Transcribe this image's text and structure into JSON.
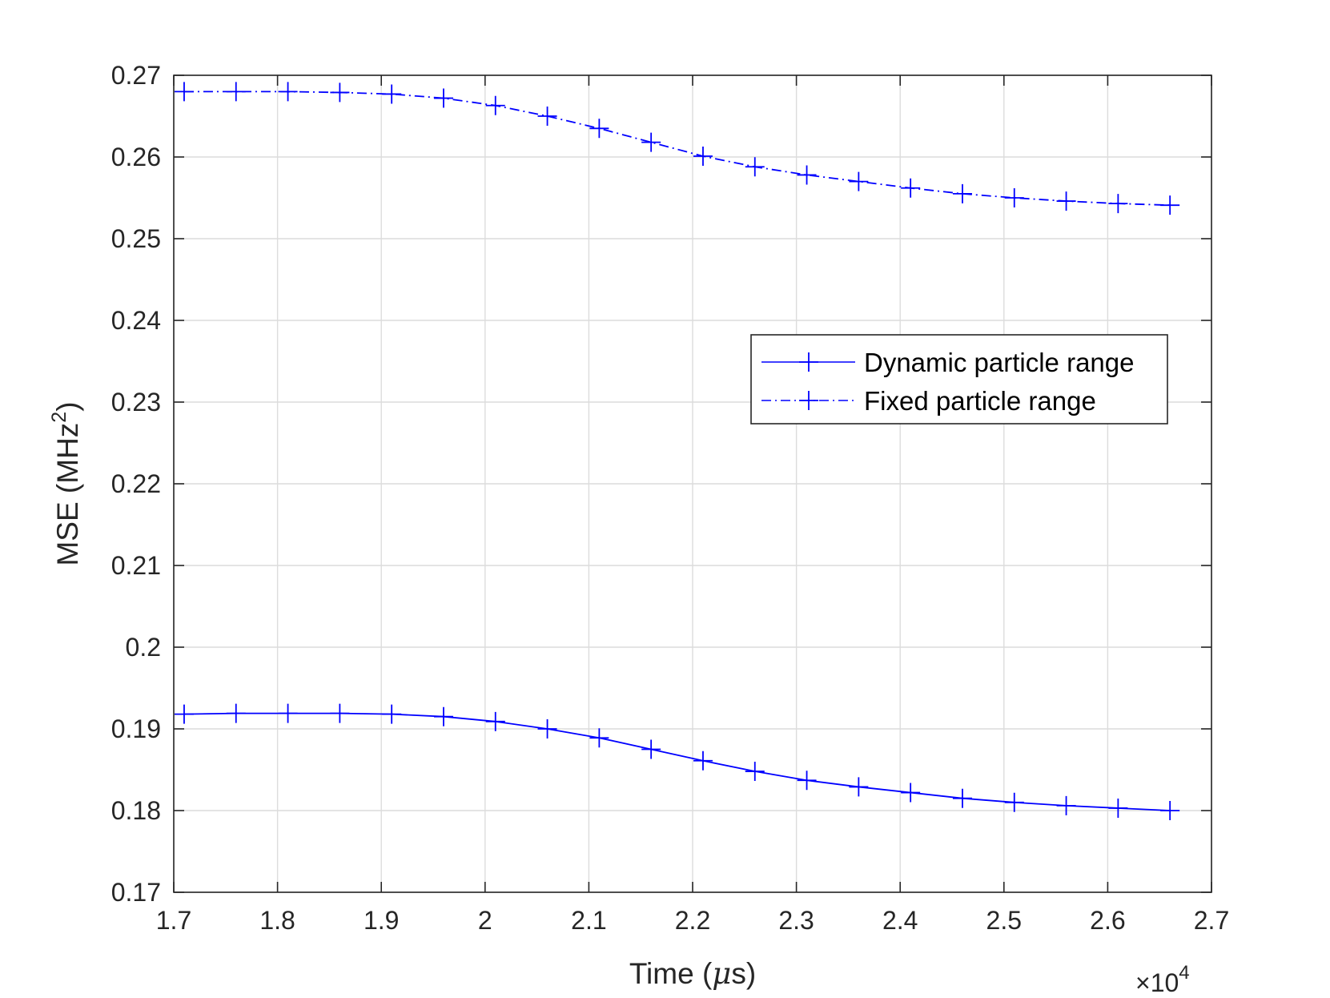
{
  "chart_data": {
    "type": "line",
    "xlabel": {
      "pre": "Time (",
      "mu": "μ",
      "post": "s)"
    },
    "ylabel": {
      "pre": "MSE (MHz",
      "sup": "2",
      "post": ")"
    },
    "x_multiplier": {
      "times": "×10",
      "exp": "4"
    },
    "xlim": [
      1.7,
      2.7
    ],
    "ylim": [
      0.17,
      0.27
    ],
    "xticks": [
      1.7,
      1.8,
      1.9,
      2.0,
      2.1,
      2.2,
      2.3,
      2.4,
      2.5,
      2.6,
      2.7
    ],
    "xtick_labels": [
      "1.7",
      "1.8",
      "1.9",
      "2",
      "2.1",
      "2.2",
      "2.3",
      "2.4",
      "2.5",
      "2.6",
      "2.7"
    ],
    "yticks": [
      0.17,
      0.18,
      0.19,
      0.2,
      0.21,
      0.22,
      0.23,
      0.24,
      0.25,
      0.26,
      0.27
    ],
    "ytick_labels": [
      "0.17",
      "0.18",
      "0.19",
      "0.2",
      "0.21",
      "0.22",
      "0.23",
      "0.24",
      "0.25",
      "0.26",
      "0.27"
    ],
    "grid": true,
    "legend_position": "center-right",
    "series_color": "#0000ff",
    "x": [
      1.71,
      1.76,
      1.81,
      1.86,
      1.91,
      1.96,
      2.01,
      2.06,
      2.11,
      2.16,
      2.21,
      2.26,
      2.31,
      2.36,
      2.41,
      2.46,
      2.51,
      2.56,
      2.61,
      2.66
    ],
    "series": [
      {
        "name": "Dynamic particle range",
        "style": "solid",
        "marker": "+",
        "values": [
          0.1918,
          0.1919,
          0.1919,
          0.1919,
          0.1918,
          0.1915,
          0.1909,
          0.19,
          0.1889,
          0.1875,
          0.1861,
          0.1848,
          0.1837,
          0.1829,
          0.1822,
          0.1815,
          0.181,
          0.1806,
          0.1803,
          0.18
        ]
      },
      {
        "name": "Fixed particle range",
        "style": "dashdot",
        "marker": "+",
        "values": [
          0.268,
          0.268,
          0.268,
          0.2679,
          0.2677,
          0.2672,
          0.2663,
          0.265,
          0.2635,
          0.2618,
          0.2601,
          0.2588,
          0.2578,
          0.257,
          0.2562,
          0.2555,
          0.255,
          0.2546,
          0.2543,
          0.2541
        ]
      }
    ]
  }
}
